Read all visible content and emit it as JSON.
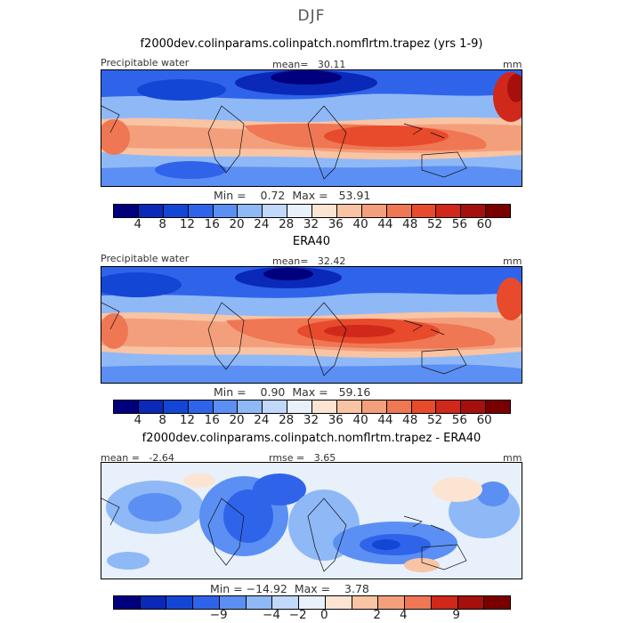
{
  "figure_title": "DJF",
  "panels": [
    {
      "title": "f2000dev.colinparams.colinpatch.nomflrtm.trapez (yrs 1-9)",
      "left_label": "Precipitable water",
      "stat_label": "mean=",
      "stat_value": "30.11",
      "units": "mm",
      "min_label": "Min =",
      "min_value": "0.72",
      "max_label": "Max =",
      "max_value": "53.91"
    },
    {
      "title": "ERA40",
      "left_label": "Precipitable water",
      "stat_label": "mean=",
      "stat_value": "32.42",
      "units": "mm",
      "min_label": "Min =",
      "min_value": "0.90",
      "max_label": "Max =",
      "max_value": "59.16"
    },
    {
      "title": "f2000dev.colinparams.colinpatch.nomflrtm.trapez - ERA40",
      "left_label": "mean =",
      "left_value": "-2.64",
      "stat_label": "rmse =",
      "stat_value": "3.65",
      "units": "mm",
      "min_label": "Min =",
      "min_value": "−14.92",
      "max_label": "Max =",
      "max_value": "3.78"
    }
  ],
  "colors": {
    "seq": [
      "#00007f",
      "#0a29b8",
      "#1446d6",
      "#2f64ea",
      "#5b8ff3",
      "#8fb8f7",
      "#c0d8fa",
      "#e8f0fb",
      "#fbe4d2",
      "#f8c4a4",
      "#f49f7c",
      "#ef7754",
      "#e84a2c",
      "#d0281a",
      "#a5100c",
      "#7a0000"
    ],
    "diff": [
      "#00007f",
      "#0a29b8",
      "#1446d6",
      "#2f64ea",
      "#5b8ff3",
      "#8fb8f7",
      "#c0d8fa",
      "#e8f0fb",
      "#fbe4d2",
      "#f8c4a4",
      "#f49f7c",
      "#ef7754",
      "#d0281a",
      "#a5100c",
      "#7a0000"
    ]
  },
  "chart_data": [
    {
      "type": "heatmap",
      "title": "f2000dev.colinparams.colinpatch.nomflrtm.trapez (yrs 1-9)",
      "variable": "Precipitable water",
      "units": "mm",
      "mean": 30.11,
      "min": 0.72,
      "max": 53.91,
      "colorbar_ticks": [
        "4",
        "8",
        "12",
        "16",
        "20",
        "24",
        "28",
        "32",
        "36",
        "40",
        "44",
        "48",
        "52",
        "56",
        "60"
      ]
    },
    {
      "type": "heatmap",
      "title": "ERA40",
      "variable": "Precipitable water",
      "units": "mm",
      "mean": 32.42,
      "min": 0.9,
      "max": 59.16,
      "colorbar_ticks": [
        "4",
        "8",
        "12",
        "16",
        "20",
        "24",
        "28",
        "32",
        "36",
        "40",
        "44",
        "48",
        "52",
        "56",
        "60"
      ]
    },
    {
      "type": "heatmap",
      "title": "f2000dev.colinparams.colinpatch.nomflrtm.trapez - ERA40",
      "units": "mm",
      "mean": -2.64,
      "rmse": 3.65,
      "min": -14.92,
      "max": 3.78,
      "colorbar_ticks": [
        "−9",
        "−4",
        "−2",
        "0",
        "2",
        "4",
        "9"
      ]
    }
  ]
}
